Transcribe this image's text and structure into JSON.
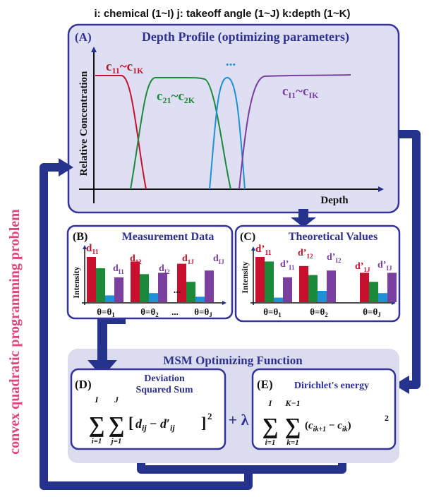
{
  "header": {
    "text": "i: chemical (1~I) j: takeoff angle (1~J) k:depth (1~K)"
  },
  "side_label": "convex quadratic programming problem",
  "panel_a": {
    "tag": "(A)",
    "title": "Depth Profile (optimizing parameters)",
    "ylabel": "Relative Concentration",
    "xlabel": "Depth",
    "label_c1": "c11~c1K",
    "label_c2": "c21~c2K",
    "label_ellipsis": "...",
    "label_cI": "cI1~cIK"
  },
  "panel_b": {
    "tag": "(B)",
    "title": "Measurement Data",
    "ylabel": "Intensity",
    "labels": [
      "d11",
      "dI1",
      "d12",
      "dI2",
      "d1J",
      "dIJ"
    ],
    "dots": "...",
    "xticks": [
      "θ=θ1",
      "θ=θ2",
      "...",
      "θ=θJ"
    ]
  },
  "panel_c": {
    "tag": "(C)",
    "title": "Theoretical Values",
    "ylabel": "Intensity",
    "labels": [
      "d'11",
      "d'I1",
      "d'12",
      "d'I2",
      "d'1J",
      "d'IJ"
    ],
    "xticks": [
      "θ=θ1",
      "θ=θ2",
      "θ=θJ"
    ]
  },
  "msm": {
    "title": "MSM Optimizing Function",
    "panel_d": {
      "tag": "(D)",
      "title_line1": "Deviation",
      "title_line2": "Squared Sum",
      "formula": "Σ(i=1..I) Σ(j=1..J) [dij − d'ij]²"
    },
    "plus_lambda": "+ λ",
    "panel_e": {
      "tag": "(E)",
      "title": "Dirichlet's energy",
      "formula": "Σ(i=1..I) Σ(k=1..K−1) (cik+1 − cik)²"
    }
  },
  "colors": {
    "panel_fill": "#dfdff3",
    "panel_border": "#33339a",
    "msm_fill": "#dcdcef",
    "arrow": "#26338c",
    "title_text": "#2e3192",
    "red": "#c8102e",
    "green": "#1a8a3a",
    "blue": "#1f8fd6",
    "purple": "#7b3fa0",
    "side_label": "#e0457a"
  },
  "chart_data": [
    {
      "type": "bar",
      "title": "Measurement Data",
      "ylabel": "Intensity",
      "categories": [
        "θ=θ1",
        "θ=θ2",
        "θ=θJ"
      ],
      "series_colors": [
        "red",
        "green",
        "blue",
        "purple"
      ],
      "values": [
        [
          1.0,
          0.75,
          0.15,
          0.55
        ],
        [
          0.9,
          0.62,
          0.2,
          0.65
        ],
        [
          0.85,
          0.45,
          0.12,
          0.7
        ]
      ]
    },
    {
      "type": "bar",
      "title": "Theoretical Values",
      "ylabel": "Intensity",
      "categories": [
        "θ=θ1",
        "θ=θ2",
        "θ=θJ"
      ],
      "series_colors": [
        "red",
        "green",
        "blue",
        "purple"
      ],
      "values": [
        [
          1.0,
          0.9,
          0.1,
          0.55
        ],
        [
          0.8,
          0.6,
          0.25,
          0.7
        ],
        [
          0.65,
          0.45,
          0.2,
          0.65
        ]
      ]
    }
  ]
}
